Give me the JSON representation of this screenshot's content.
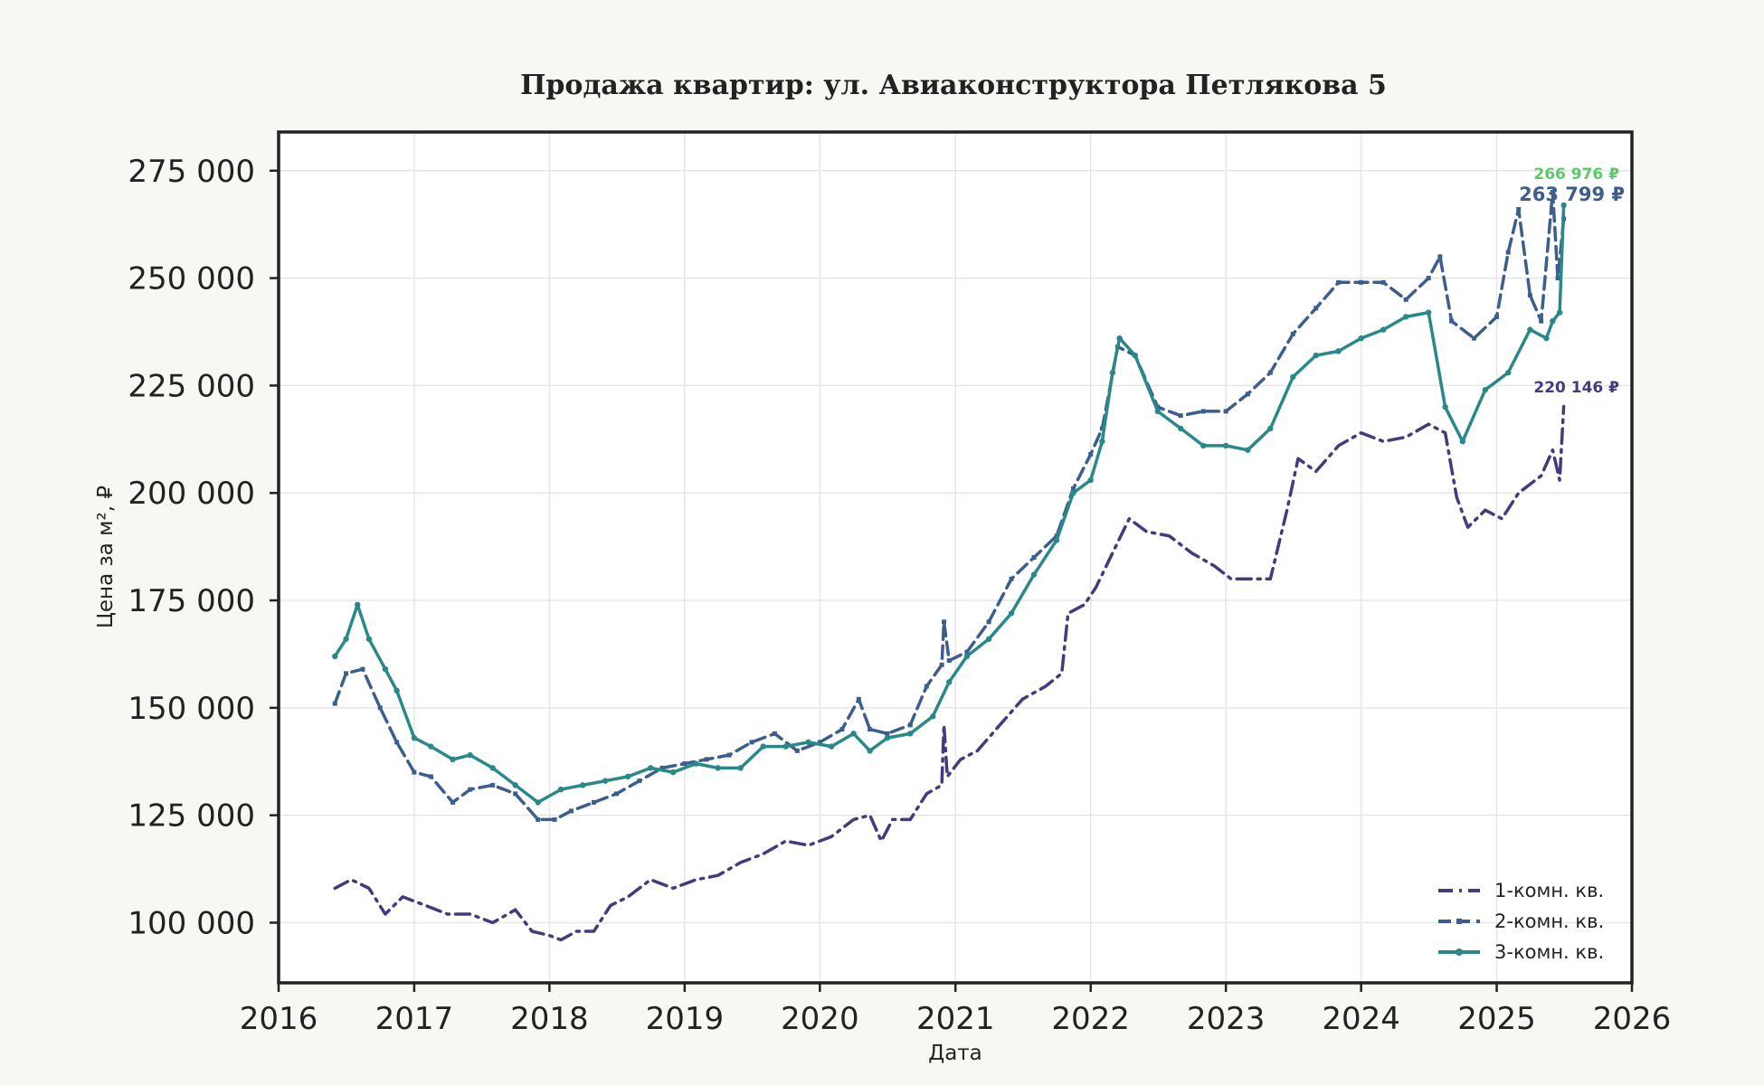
{
  "chart_data": {
    "type": "line",
    "title": "Продажа квартир: ул. Авиаконструктора Петлякова 5",
    "xlabel": "Дата",
    "ylabel": "Цена за м², ₽",
    "xlim": [
      "2016-01-01",
      "2026-01-01"
    ],
    "ylim": [
      86000,
      284000
    ],
    "x_ticks": [
      {
        "date": "2016-01-01",
        "label": "2016"
      },
      {
        "date": "2017-01-01",
        "label": "2017"
      },
      {
        "date": "2018-01-01",
        "label": "2018"
      },
      {
        "date": "2019-01-01",
        "label": "2019"
      },
      {
        "date": "2020-01-01",
        "label": "2020"
      },
      {
        "date": "2021-01-01",
        "label": "2021"
      },
      {
        "date": "2022-01-01",
        "label": "2022"
      },
      {
        "date": "2023-01-01",
        "label": "2023"
      },
      {
        "date": "2024-01-01",
        "label": "2024"
      },
      {
        "date": "2025-01-01",
        "label": "2025"
      },
      {
        "date": "2026-01-01",
        "label": "2026"
      }
    ],
    "y_ticks": [
      {
        "value": 100000,
        "label": "100 000"
      },
      {
        "value": 125000,
        "label": "125 000"
      },
      {
        "value": 150000,
        "label": "150 000"
      },
      {
        "value": 175000,
        "label": "175 000"
      },
      {
        "value": 200000,
        "label": "200 000"
      },
      {
        "value": 225000,
        "label": "225 000"
      },
      {
        "value": 250000,
        "label": "250 000"
      },
      {
        "value": 275000,
        "label": "275 000"
      }
    ],
    "grid": true,
    "legend_position": "lower-right",
    "series": [
      {
        "name": "1-комн. кв.",
        "color": "#433b7d",
        "dash": "dashdot",
        "marker": "none",
        "end_label": "220 146 ₽",
        "points": [
          [
            "2016-06-01",
            108000
          ],
          [
            "2016-07-15",
            110000
          ],
          [
            "2016-09-01",
            108000
          ],
          [
            "2016-10-15",
            102000
          ],
          [
            "2016-12-01",
            106000
          ],
          [
            "2017-02-01",
            104000
          ],
          [
            "2017-04-01",
            102000
          ],
          [
            "2017-06-01",
            102000
          ],
          [
            "2017-08-01",
            100000
          ],
          [
            "2017-10-01",
            103000
          ],
          [
            "2017-11-15",
            98000
          ],
          [
            "2018-01-01",
            97000
          ],
          [
            "2018-02-01",
            96000
          ],
          [
            "2018-03-15",
            98000
          ],
          [
            "2018-05-01",
            98000
          ],
          [
            "2018-06-15",
            104000
          ],
          [
            "2018-08-01",
            106000
          ],
          [
            "2018-10-01",
            110000
          ],
          [
            "2018-12-01",
            108000
          ],
          [
            "2019-02-01",
            110000
          ],
          [
            "2019-04-01",
            111000
          ],
          [
            "2019-06-01",
            114000
          ],
          [
            "2019-08-01",
            116000
          ],
          [
            "2019-10-01",
            119000
          ],
          [
            "2019-12-01",
            118000
          ],
          [
            "2020-02-01",
            120000
          ],
          [
            "2020-04-01",
            124000
          ],
          [
            "2020-05-15",
            125000
          ],
          [
            "2020-06-15",
            119000
          ],
          [
            "2020-07-15",
            124000
          ],
          [
            "2020-09-01",
            124000
          ],
          [
            "2020-10-15",
            130000
          ],
          [
            "2020-11-25",
            132000
          ],
          [
            "2020-12-01",
            146000
          ],
          [
            "2020-12-10",
            134000
          ],
          [
            "2021-01-15",
            138000
          ],
          [
            "2021-03-01",
            140000
          ],
          [
            "2021-05-01",
            146000
          ],
          [
            "2021-07-01",
            152000
          ],
          [
            "2021-09-01",
            155000
          ],
          [
            "2021-10-15",
            158000
          ],
          [
            "2021-11-01",
            172000
          ],
          [
            "2021-12-15",
            174000
          ],
          [
            "2022-01-15",
            178000
          ],
          [
            "2022-03-01",
            186000
          ],
          [
            "2022-04-15",
            194000
          ],
          [
            "2022-06-01",
            191000
          ],
          [
            "2022-08-01",
            190000
          ],
          [
            "2022-10-01",
            186000
          ],
          [
            "2022-12-01",
            183000
          ],
          [
            "2023-01-15",
            180000
          ],
          [
            "2023-03-01",
            180000
          ],
          [
            "2023-05-01",
            180000
          ],
          [
            "2023-06-15",
            196000
          ],
          [
            "2023-07-15",
            208000
          ],
          [
            "2023-09-01",
            205000
          ],
          [
            "2023-11-01",
            211000
          ],
          [
            "2024-01-01",
            214000
          ],
          [
            "2024-03-01",
            212000
          ],
          [
            "2024-05-01",
            213000
          ],
          [
            "2024-07-01",
            216000
          ],
          [
            "2024-08-15",
            214000
          ],
          [
            "2024-09-15",
            199000
          ],
          [
            "2024-10-15",
            192000
          ],
          [
            "2024-12-01",
            196000
          ],
          [
            "2025-01-15",
            194000
          ],
          [
            "2025-03-01",
            200000
          ],
          [
            "2025-05-01",
            204000
          ],
          [
            "2025-06-01",
            210000
          ],
          [
            "2025-06-20",
            203000
          ],
          [
            "2025-07-01",
            220146
          ]
        ]
      },
      {
        "name": "2-комн. кв.",
        "color": "#3b5e8c",
        "dash": "dashed",
        "marker": "small-square",
        "end_label": "263 799 ₽",
        "points": [
          [
            "2016-06-01",
            151000
          ],
          [
            "2016-07-01",
            158000
          ],
          [
            "2016-08-15",
            159000
          ],
          [
            "2016-10-01",
            150000
          ],
          [
            "2016-11-15",
            142000
          ],
          [
            "2017-01-01",
            135000
          ],
          [
            "2017-02-15",
            134000
          ],
          [
            "2017-04-15",
            128000
          ],
          [
            "2017-06-01",
            131000
          ],
          [
            "2017-08-01",
            132000
          ],
          [
            "2017-10-01",
            130000
          ],
          [
            "2017-12-01",
            124000
          ],
          [
            "2018-01-15",
            124000
          ],
          [
            "2018-03-01",
            126000
          ],
          [
            "2018-05-01",
            128000
          ],
          [
            "2018-07-01",
            130000
          ],
          [
            "2018-09-01",
            133000
          ],
          [
            "2018-11-01",
            136000
          ],
          [
            "2019-01-01",
            137000
          ],
          [
            "2019-03-01",
            138000
          ],
          [
            "2019-05-01",
            139000
          ],
          [
            "2019-07-01",
            142000
          ],
          [
            "2019-09-01",
            144000
          ],
          [
            "2019-11-01",
            140000
          ],
          [
            "2020-01-01",
            142000
          ],
          [
            "2020-03-01",
            145000
          ],
          [
            "2020-04-15",
            152000
          ],
          [
            "2020-05-15",
            145000
          ],
          [
            "2020-07-01",
            144000
          ],
          [
            "2020-09-01",
            146000
          ],
          [
            "2020-10-15",
            155000
          ],
          [
            "2020-11-25",
            160000
          ],
          [
            "2020-12-01",
            170000
          ],
          [
            "2020-12-15",
            161000
          ],
          [
            "2021-02-01",
            163000
          ],
          [
            "2021-04-01",
            170000
          ],
          [
            "2021-06-01",
            180000
          ],
          [
            "2021-08-01",
            185000
          ],
          [
            "2021-10-01",
            190000
          ],
          [
            "2021-11-15",
            201000
          ],
          [
            "2022-01-01",
            209000
          ],
          [
            "2022-02-01",
            215000
          ],
          [
            "2022-03-15",
            234000
          ],
          [
            "2022-05-01",
            232000
          ],
          [
            "2022-07-01",
            220000
          ],
          [
            "2022-09-01",
            218000
          ],
          [
            "2022-11-01",
            219000
          ],
          [
            "2023-01-01",
            219000
          ],
          [
            "2023-03-01",
            223000
          ],
          [
            "2023-05-01",
            228000
          ],
          [
            "2023-07-01",
            237000
          ],
          [
            "2023-09-01",
            243000
          ],
          [
            "2023-11-01",
            249000
          ],
          [
            "2024-01-01",
            249000
          ],
          [
            "2024-03-01",
            249000
          ],
          [
            "2024-05-01",
            245000
          ],
          [
            "2024-07-01",
            250000
          ],
          [
            "2024-08-01",
            255000
          ],
          [
            "2024-09-01",
            240000
          ],
          [
            "2024-11-01",
            236000
          ],
          [
            "2025-01-01",
            241000
          ],
          [
            "2025-02-01",
            256000
          ],
          [
            "2025-03-01",
            266000
          ],
          [
            "2025-04-01",
            246000
          ],
          [
            "2025-05-01",
            240000
          ],
          [
            "2025-06-01",
            270000
          ],
          [
            "2025-06-15",
            250000
          ],
          [
            "2025-07-01",
            263799
          ]
        ]
      },
      {
        "name": "3-комн. кв.",
        "color": "#29888a",
        "dash": "solid",
        "marker": "dot",
        "end_label": "266 976 ₽",
        "end_label_color": "#5cc86b",
        "points": [
          [
            "2016-06-01",
            162000
          ],
          [
            "2016-07-01",
            166000
          ],
          [
            "2016-08-01",
            174000
          ],
          [
            "2016-09-01",
            166000
          ],
          [
            "2016-10-15",
            159000
          ],
          [
            "2016-11-15",
            154000
          ],
          [
            "2017-01-01",
            143000
          ],
          [
            "2017-02-15",
            141000
          ],
          [
            "2017-04-15",
            138000
          ],
          [
            "2017-06-01",
            139000
          ],
          [
            "2017-08-01",
            136000
          ],
          [
            "2017-10-01",
            132000
          ],
          [
            "2017-12-01",
            128000
          ],
          [
            "2018-02-01",
            131000
          ],
          [
            "2018-04-01",
            132000
          ],
          [
            "2018-06-01",
            133000
          ],
          [
            "2018-08-01",
            134000
          ],
          [
            "2018-10-01",
            136000
          ],
          [
            "2018-12-01",
            135000
          ],
          [
            "2019-02-01",
            137000
          ],
          [
            "2019-04-01",
            136000
          ],
          [
            "2019-06-01",
            136000
          ],
          [
            "2019-08-01",
            141000
          ],
          [
            "2019-10-01",
            141000
          ],
          [
            "2019-12-01",
            142000
          ],
          [
            "2020-02-01",
            141000
          ],
          [
            "2020-04-01",
            144000
          ],
          [
            "2020-05-15",
            140000
          ],
          [
            "2020-07-01",
            143000
          ],
          [
            "2020-09-01",
            144000
          ],
          [
            "2020-11-01",
            148000
          ],
          [
            "2020-12-15",
            156000
          ],
          [
            "2021-02-01",
            162000
          ],
          [
            "2021-04-01",
            166000
          ],
          [
            "2021-06-01",
            172000
          ],
          [
            "2021-08-01",
            181000
          ],
          [
            "2021-10-01",
            189000
          ],
          [
            "2021-11-15",
            200000
          ],
          [
            "2022-01-01",
            203000
          ],
          [
            "2022-02-01",
            212000
          ],
          [
            "2022-03-01",
            228000
          ],
          [
            "2022-03-20",
            236000
          ],
          [
            "2022-05-01",
            232000
          ],
          [
            "2022-07-01",
            219000
          ],
          [
            "2022-09-01",
            215000
          ],
          [
            "2022-11-01",
            211000
          ],
          [
            "2023-01-01",
            211000
          ],
          [
            "2023-03-01",
            210000
          ],
          [
            "2023-05-01",
            215000
          ],
          [
            "2023-07-01",
            227000
          ],
          [
            "2023-09-01",
            232000
          ],
          [
            "2023-11-01",
            233000
          ],
          [
            "2024-01-01",
            236000
          ],
          [
            "2024-03-01",
            238000
          ],
          [
            "2024-05-01",
            241000
          ],
          [
            "2024-07-01",
            242000
          ],
          [
            "2024-08-15",
            220000
          ],
          [
            "2024-10-01",
            212000
          ],
          [
            "2024-12-01",
            224000
          ],
          [
            "2025-02-01",
            228000
          ],
          [
            "2025-04-01",
            238000
          ],
          [
            "2025-05-15",
            236000
          ],
          [
            "2025-06-01",
            240000
          ],
          [
            "2025-06-20",
            242000
          ],
          [
            "2025-07-01",
            266976
          ]
        ]
      }
    ]
  }
}
